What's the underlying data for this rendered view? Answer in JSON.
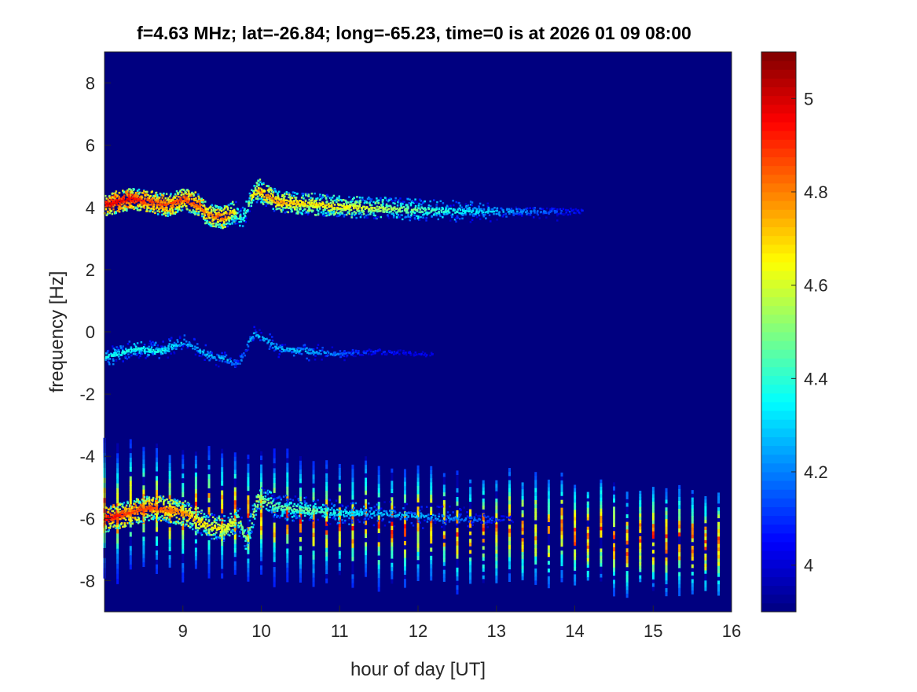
{
  "chart_data": {
    "type": "heatmap",
    "title": "f=4.63 MHz;  lat=-26.84; long=-65.23, time=0 is at 2026 01 09 08:00",
    "xlabel": "hour of day [UT]",
    "ylabel": "frequency [Hz]",
    "xlim": [
      8,
      16
    ],
    "ylim": [
      -9,
      9
    ],
    "xticks": [
      9,
      10,
      11,
      12,
      13,
      14,
      15,
      16
    ],
    "xtick_labels": [
      "9",
      "10",
      "11",
      "12",
      "13",
      "14",
      "15",
      "16"
    ],
    "yticks": [
      -8,
      -6,
      -4,
      -2,
      0,
      2,
      4,
      6,
      8
    ],
    "ytick_labels": [
      "-8",
      "-6",
      "-4",
      "-2",
      "0",
      "2",
      "4",
      "6",
      "8"
    ],
    "colormap": "jet",
    "clim": [
      3.9,
      5.1
    ],
    "colorbar_ticks": [
      4,
      4.2,
      4.4,
      4.6,
      4.8,
      5
    ],
    "colorbar_tick_labels": [
      "4",
      "4.2",
      "4.4",
      "4.6",
      "4.8",
      "5"
    ],
    "background_value": 3.9,
    "traces": [
      {
        "name": "upper-doppler-trace",
        "spread": 0.35,
        "points": [
          [
            8.0,
            4.1,
            5.0
          ],
          [
            8.3,
            4.3,
            5.0
          ],
          [
            8.6,
            4.2,
            4.9
          ],
          [
            8.8,
            4.1,
            4.9
          ],
          [
            9.0,
            4.3,
            4.9
          ],
          [
            9.2,
            4.1,
            4.9
          ],
          [
            9.3,
            3.8,
            4.8
          ],
          [
            9.5,
            3.7,
            4.9
          ],
          [
            9.65,
            3.9,
            4.7
          ],
          [
            9.75,
            3.6,
            4.4
          ],
          [
            9.85,
            4.3,
            4.6
          ],
          [
            9.95,
            4.6,
            4.8
          ],
          [
            10.2,
            4.2,
            4.8
          ],
          [
            10.6,
            4.15,
            4.7
          ],
          [
            11.0,
            4.05,
            4.7
          ],
          [
            11.5,
            4.0,
            4.6
          ],
          [
            12.0,
            3.95,
            4.5
          ],
          [
            12.5,
            3.9,
            4.4
          ],
          [
            13.0,
            3.9,
            4.3
          ],
          [
            13.5,
            3.9,
            4.2
          ],
          [
            14.1,
            3.9,
            4.1
          ]
        ]
      },
      {
        "name": "middle-doppler-trace",
        "spread": 0.3,
        "points": [
          [
            8.0,
            -0.8,
            4.4
          ],
          [
            8.4,
            -0.5,
            4.4
          ],
          [
            8.7,
            -0.6,
            4.4
          ],
          [
            9.0,
            -0.3,
            4.3
          ],
          [
            9.3,
            -0.7,
            4.3
          ],
          [
            9.6,
            -0.9,
            4.3
          ],
          [
            9.7,
            -1.0,
            4.2
          ],
          [
            9.9,
            0.0,
            4.3
          ],
          [
            10.2,
            -0.5,
            4.3
          ],
          [
            10.6,
            -0.6,
            4.3
          ],
          [
            11.0,
            -0.7,
            4.2
          ],
          [
            11.5,
            -0.6,
            4.1
          ],
          [
            12.2,
            -0.7,
            4.05
          ]
        ]
      },
      {
        "name": "lower-doppler-trace",
        "spread": 0.4,
        "points": [
          [
            8.0,
            -6.0,
            5.0
          ],
          [
            8.3,
            -5.8,
            4.9
          ],
          [
            8.6,
            -5.6,
            4.9
          ],
          [
            9.0,
            -5.8,
            4.8
          ],
          [
            9.3,
            -6.2,
            4.7
          ],
          [
            9.5,
            -6.3,
            4.7
          ],
          [
            9.7,
            -6.0,
            4.6
          ],
          [
            9.8,
            -6.7,
            4.5
          ],
          [
            9.95,
            -5.3,
            4.6
          ],
          [
            10.2,
            -5.6,
            4.5
          ],
          [
            10.6,
            -5.7,
            4.5
          ],
          [
            11.0,
            -5.8,
            4.4
          ],
          [
            11.5,
            -5.8,
            4.3
          ],
          [
            12.0,
            -5.9,
            4.3
          ],
          [
            12.7,
            -6.0,
            4.2
          ],
          [
            13.2,
            -6.0,
            4.1
          ]
        ]
      }
    ],
    "periodic_stripes": {
      "start_hour": 8.0,
      "interval_hours": 0.1667,
      "count": 48,
      "top_freq_start": -3.5,
      "top_freq_end": -5.3,
      "bottom_freq_start": -7.8,
      "bottom_freq_end": -8.4,
      "peak_value": 5.05
    }
  }
}
